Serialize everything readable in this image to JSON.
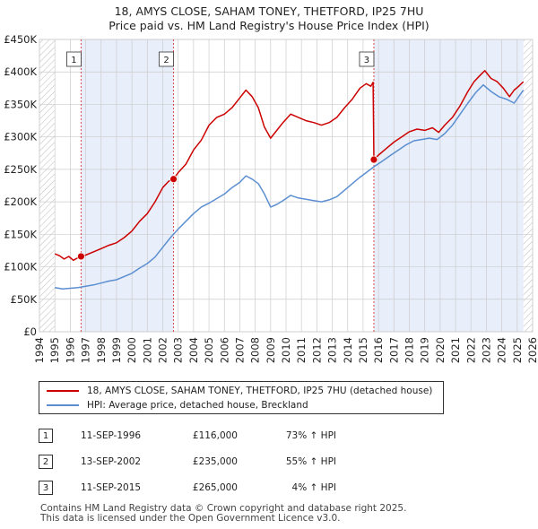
{
  "chart_data": {
    "type": "line",
    "title": "18, AMYS CLOSE, SAHAM TONEY, THETFORD, IP25 7HU",
    "subtitle": "Price paid vs. HM Land Registry's House Price Index (HPI)",
    "xlim": [
      1994,
      2026
    ],
    "ylim": [
      0,
      450000
    ],
    "x_ticks": [
      1994,
      1995,
      1996,
      1997,
      1998,
      1999,
      2000,
      2001,
      2002,
      2003,
      2004,
      2005,
      2006,
      2007,
      2008,
      2009,
      2010,
      2011,
      2012,
      2013,
      2014,
      2015,
      2016,
      2017,
      2018,
      2019,
      2020,
      2021,
      2022,
      2023,
      2024,
      2025,
      2026
    ],
    "y_ticks": [
      {
        "value": 0,
        "label": "£0"
      },
      {
        "value": 50000,
        "label": "£50K"
      },
      {
        "value": 100000,
        "label": "£100K"
      },
      {
        "value": 150000,
        "label": "£150K"
      },
      {
        "value": 200000,
        "label": "£200K"
      },
      {
        "value": 250000,
        "label": "£250K"
      },
      {
        "value": 300000,
        "label": "£300K"
      },
      {
        "value": 350000,
        "label": "£350K"
      },
      {
        "value": 400000,
        "label": "£400K"
      },
      {
        "value": 450000,
        "label": "£450K"
      }
    ],
    "data_range": [
      1995.0,
      2025.4
    ],
    "shaded_ownership": [
      [
        1996.7,
        2002.7
      ],
      [
        2015.7,
        2025.4
      ]
    ],
    "hatched_regions": [
      [
        1994,
        1995.0
      ],
      [
        2025.4,
        2026
      ]
    ],
    "series": [
      {
        "name": "18, AMYS CLOSE, SAHAM TONEY, THETFORD, IP25 7HU (detached house)",
        "color": "#cc0000",
        "points": [
          [
            1995.0,
            120000
          ],
          [
            1995.3,
            117000
          ],
          [
            1995.6,
            112000
          ],
          [
            1995.9,
            116000
          ],
          [
            1996.2,
            110000
          ],
          [
            1996.5,
            114000
          ],
          [
            1996.7,
            116000
          ],
          [
            1997.0,
            118000
          ],
          [
            1997.5,
            123000
          ],
          [
            1998.0,
            128000
          ],
          [
            1998.5,
            133000
          ],
          [
            1999.0,
            137000
          ],
          [
            1999.5,
            145000
          ],
          [
            2000.0,
            155000
          ],
          [
            2000.5,
            170000
          ],
          [
            2001.0,
            182000
          ],
          [
            2001.5,
            200000
          ],
          [
            2002.0,
            222000
          ],
          [
            2002.4,
            232000
          ],
          [
            2002.7,
            235000
          ],
          [
            2003.0,
            245000
          ],
          [
            2003.5,
            258000
          ],
          [
            2004.0,
            280000
          ],
          [
            2004.5,
            295000
          ],
          [
            2005.0,
            318000
          ],
          [
            2005.5,
            330000
          ],
          [
            2006.0,
            335000
          ],
          [
            2006.5,
            345000
          ],
          [
            2007.0,
            360000
          ],
          [
            2007.4,
            372000
          ],
          [
            2007.8,
            362000
          ],
          [
            2008.2,
            345000
          ],
          [
            2008.6,
            315000
          ],
          [
            2009.0,
            298000
          ],
          [
            2009.4,
            310000
          ],
          [
            2009.8,
            322000
          ],
          [
            2010.3,
            335000
          ],
          [
            2010.8,
            330000
          ],
          [
            2011.3,
            325000
          ],
          [
            2011.8,
            322000
          ],
          [
            2012.3,
            318000
          ],
          [
            2012.8,
            322000
          ],
          [
            2013.3,
            330000
          ],
          [
            2013.8,
            345000
          ],
          [
            2014.3,
            358000
          ],
          [
            2014.8,
            375000
          ],
          [
            2015.2,
            382000
          ],
          [
            2015.5,
            378000
          ],
          [
            2015.65,
            384000
          ],
          [
            2015.7,
            265000
          ],
          [
            2016.0,
            272000
          ],
          [
            2016.5,
            282000
          ],
          [
            2017.0,
            292000
          ],
          [
            2017.5,
            300000
          ],
          [
            2018.0,
            308000
          ],
          [
            2018.5,
            312000
          ],
          [
            2019.0,
            310000
          ],
          [
            2019.5,
            314000
          ],
          [
            2019.9,
            307000
          ],
          [
            2020.3,
            318000
          ],
          [
            2020.8,
            330000
          ],
          [
            2021.3,
            348000
          ],
          [
            2021.8,
            370000
          ],
          [
            2022.2,
            385000
          ],
          [
            2022.6,
            395000
          ],
          [
            2022.9,
            402000
          ],
          [
            2023.3,
            390000
          ],
          [
            2023.7,
            385000
          ],
          [
            2024.1,
            375000
          ],
          [
            2024.5,
            362000
          ],
          [
            2024.8,
            372000
          ],
          [
            2025.1,
            378000
          ],
          [
            2025.4,
            385000
          ]
        ]
      },
      {
        "name": "HPI: Average price, detached house, Breckland",
        "color": "#5b8fd1",
        "points": [
          [
            1995.0,
            68000
          ],
          [
            1995.5,
            66000
          ],
          [
            1996.0,
            67000
          ],
          [
            1996.5,
            68000
          ],
          [
            1997.0,
            70000
          ],
          [
            1997.5,
            72000
          ],
          [
            1998.0,
            75000
          ],
          [
            1998.5,
            78000
          ],
          [
            1999.0,
            80000
          ],
          [
            1999.5,
            85000
          ],
          [
            2000.0,
            90000
          ],
          [
            2000.5,
            98000
          ],
          [
            2001.0,
            105000
          ],
          [
            2001.5,
            115000
          ],
          [
            2002.0,
            130000
          ],
          [
            2002.5,
            145000
          ],
          [
            2003.0,
            158000
          ],
          [
            2003.5,
            170000
          ],
          [
            2004.0,
            182000
          ],
          [
            2004.5,
            192000
          ],
          [
            2005.0,
            198000
          ],
          [
            2005.5,
            205000
          ],
          [
            2006.0,
            212000
          ],
          [
            2006.5,
            222000
          ],
          [
            2007.0,
            230000
          ],
          [
            2007.4,
            240000
          ],
          [
            2007.8,
            235000
          ],
          [
            2008.2,
            228000
          ],
          [
            2008.6,
            212000
          ],
          [
            2009.0,
            192000
          ],
          [
            2009.4,
            196000
          ],
          [
            2009.8,
            202000
          ],
          [
            2010.3,
            210000
          ],
          [
            2010.8,
            206000
          ],
          [
            2011.3,
            204000
          ],
          [
            2011.8,
            202000
          ],
          [
            2012.3,
            200000
          ],
          [
            2012.8,
            203000
          ],
          [
            2013.3,
            208000
          ],
          [
            2013.8,
            218000
          ],
          [
            2014.3,
            228000
          ],
          [
            2014.8,
            238000
          ],
          [
            2015.2,
            245000
          ],
          [
            2015.7,
            254000
          ],
          [
            2016.2,
            262000
          ],
          [
            2016.8,
            272000
          ],
          [
            2017.3,
            280000
          ],
          [
            2017.8,
            288000
          ],
          [
            2018.3,
            294000
          ],
          [
            2018.8,
            296000
          ],
          [
            2019.3,
            298000
          ],
          [
            2019.8,
            296000
          ],
          [
            2020.3,
            305000
          ],
          [
            2020.8,
            318000
          ],
          [
            2021.3,
            335000
          ],
          [
            2021.8,
            352000
          ],
          [
            2022.3,
            368000
          ],
          [
            2022.8,
            380000
          ],
          [
            2023.3,
            370000
          ],
          [
            2023.8,
            362000
          ],
          [
            2024.3,
            358000
          ],
          [
            2024.8,
            352000
          ],
          [
            2025.1,
            362000
          ],
          [
            2025.4,
            372000
          ]
        ]
      }
    ],
    "sales": [
      {
        "label": "1",
        "x": 1996.7,
        "y": 116000
      },
      {
        "label": "2",
        "x": 2002.7,
        "y": 235000
      },
      {
        "label": "3",
        "x": 2015.7,
        "y": 265000
      }
    ],
    "legend_position": "bottom"
  },
  "table": {
    "rows": [
      {
        "num": "1",
        "date": "11-SEP-1996",
        "price": "£116,000",
        "hpi": "73% ↑ HPI"
      },
      {
        "num": "2",
        "date": "13-SEP-2002",
        "price": "£235,000",
        "hpi": "55% ↑ HPI"
      },
      {
        "num": "3",
        "date": "11-SEP-2015",
        "price": "£265,000",
        "hpi": "4% ↑ HPI"
      }
    ]
  },
  "footer": {
    "line1": "Contains HM Land Registry data © Crown copyright and database right 2025.",
    "line2": "This data is licensed under the Open Government Licence v3.0."
  },
  "colors": {
    "property_line": "#cc0000",
    "hpi_line": "#5b8fd1",
    "shade": "#e8eefa",
    "grid": "#cccccc"
  }
}
